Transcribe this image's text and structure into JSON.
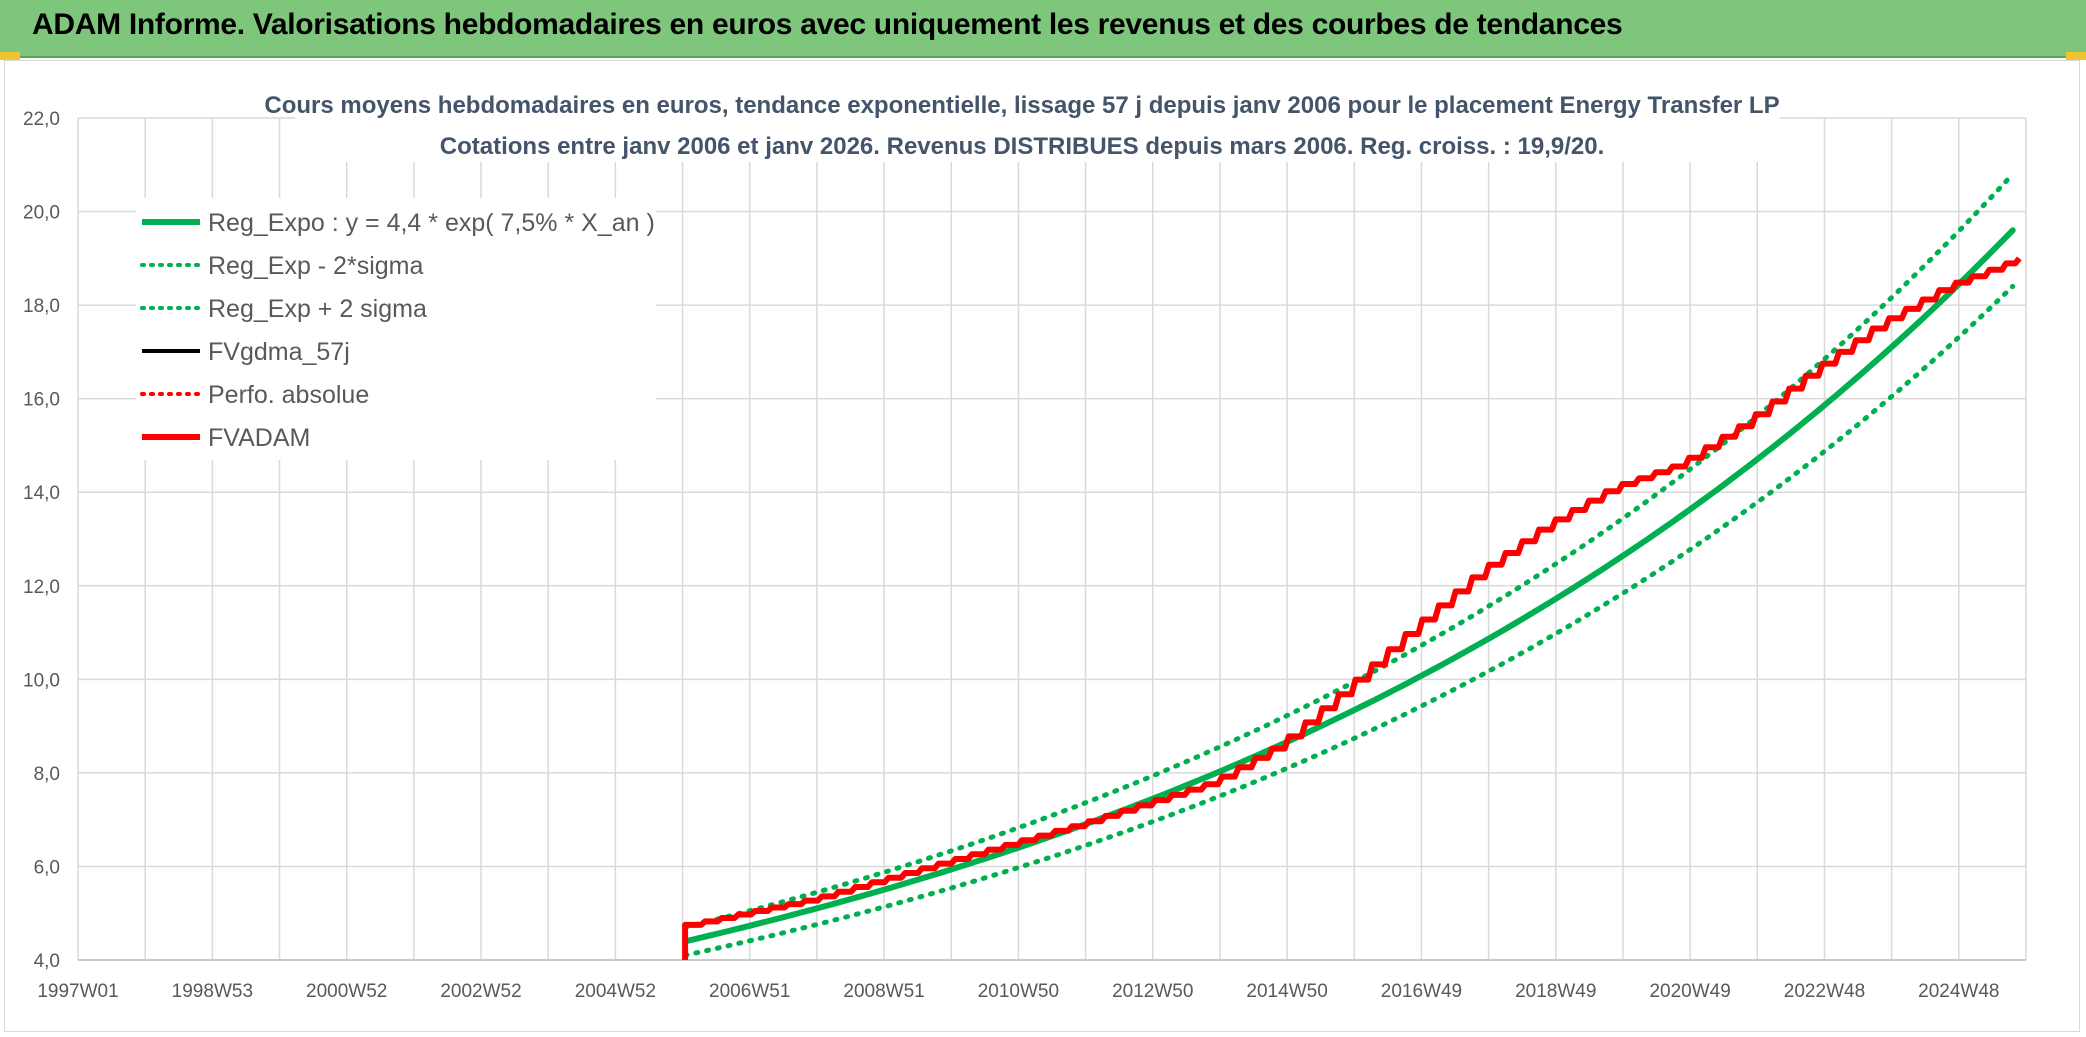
{
  "header": {
    "title": "ADAM Informe. Valorisations hebdomadaires en euros avec uniquement les revenus et des courbes de tendances"
  },
  "colors": {
    "header_bg": "#7dc67b",
    "green": "#00b050",
    "red": "#ff0000",
    "black": "#000000",
    "grid": "#d9d9d9"
  },
  "chart_data": {
    "type": "line",
    "title": "Cours moyens hebdomadaires en euros, tendance exponentielle, lissage 57 j depuis janv 2006 pour le placement Energy Transfer LP",
    "subtitle": "Cotations entre janv 2006 et janv 2026. Revenus DISTRIBUES depuis mars 2006. Reg. croiss. : 19,9/20.",
    "xlabel": "",
    "ylabel": "",
    "ylim": [
      4.0,
      22.0
    ],
    "y_ticks": [
      "4,0",
      "6,0",
      "8,0",
      "10,0",
      "12,0",
      "14,0",
      "16,0",
      "18,0",
      "20,0",
      "22,0"
    ],
    "x_ticks": [
      "1997W01",
      "1998W53",
      "2000W52",
      "2002W52",
      "2004W52",
      "2006W51",
      "2008W51",
      "2010W50",
      "2012W50",
      "2014W50",
      "2016W49",
      "2018W49",
      "2020W49",
      "2022W48",
      "2024W48"
    ],
    "xlim_years": [
      1997.0,
      2026.2
    ],
    "grid": true,
    "legend_position": "top-left",
    "legend": [
      {
        "label": "Reg_Expo : y = 4,4 * exp( 7,5% *  X_an )",
        "color": "#00b050",
        "style": "solid-thick",
        "icon": "solid-line"
      },
      {
        "label": "Reg_Exp - 2*sigma",
        "color": "#00b050",
        "style": "dotted",
        "icon": "dotted-line"
      },
      {
        "label": "Reg_Exp + 2 sigma",
        "color": "#00b050",
        "style": "dotted",
        "icon": "dotted-line"
      },
      {
        "label": "FVgdma_57j",
        "color": "#000000",
        "style": "solid",
        "icon": "solid-line"
      },
      {
        "label": "Perfo. absolue",
        "color": "#ff0000",
        "style": "dotted",
        "icon": "dotted-line"
      },
      {
        "label": "FVADAM",
        "color": "#ff0000",
        "style": "solid-thick",
        "icon": "solid-line"
      }
    ],
    "series": [
      {
        "name": "Reg_Expo : y = 4,4 * exp( 7,5% *  X_an )",
        "x": [
          2006.1,
          2008.0,
          2010.0,
          2012.0,
          2014.0,
          2016.0,
          2018.0,
          2020.0,
          2022.0,
          2024.0,
          2026.0
        ],
        "values": [
          4.4,
          5.1,
          5.9,
          6.8,
          7.9,
          9.2,
          10.7,
          12.4,
          14.4,
          16.8,
          19.6
        ]
      },
      {
        "name": "Reg_Exp - 2*sigma",
        "x": [
          2006.1,
          2008.0,
          2010.0,
          2012.0,
          2014.0,
          2016.0,
          2018.0,
          2020.0,
          2022.0,
          2024.0,
          2026.0
        ],
        "values": [
          4.1,
          4.8,
          5.6,
          6.5,
          7.5,
          8.7,
          10.1,
          11.7,
          13.6,
          15.8,
          18.4
        ]
      },
      {
        "name": "Reg_Exp + 2 sigma",
        "x": [
          2006.1,
          2008.0,
          2010.0,
          2012.0,
          2014.0,
          2016.0,
          2018.0,
          2020.0,
          2022.0,
          2024.0,
          2026.0
        ],
        "values": [
          4.7,
          5.4,
          6.3,
          7.3,
          8.5,
          9.8,
          11.4,
          13.2,
          15.3,
          17.8,
          20.8
        ]
      },
      {
        "name": "FVADAM",
        "x": [
          2006.1,
          2006.15,
          2008.0,
          2010.0,
          2012.0,
          2014.0,
          2015.0,
          2016.0,
          2017.0,
          2018.0,
          2019.0,
          2020.0,
          2021.0,
          2022.0,
          2023.0,
          2024.0,
          2025.0,
          2026.1
        ],
        "values": [
          4.0,
          4.75,
          5.3,
          6.1,
          6.9,
          7.8,
          8.6,
          9.8,
          11.1,
          12.3,
          13.3,
          14.1,
          14.6,
          15.5,
          16.6,
          17.6,
          18.4,
          19.0
        ]
      }
    ]
  }
}
